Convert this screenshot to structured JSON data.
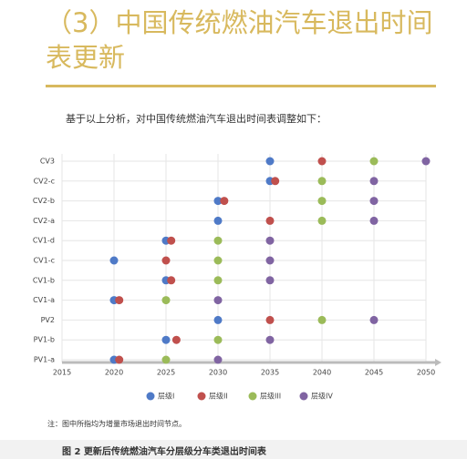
{
  "header": {
    "title": "（3）中国传统燃油汽车退出时间表更新"
  },
  "intro": "基于以上分析，对中国传统燃油汽车退出时间表调整如下：",
  "chart_data": {
    "type": "scatter",
    "categories": [
      "CV3",
      "CV2-c",
      "CV2-b",
      "CV2-a",
      "CV1-d",
      "CV1-c",
      "CV1-b",
      "CV1-a",
      "PV2",
      "PV1-b",
      "PV1-a"
    ],
    "series": [
      {
        "name": "层级I",
        "color": "#4f7ac7",
        "values": [
          2035,
          2035,
          2030,
          2030,
          2025,
          2020,
          2025,
          2020,
          2030,
          2025,
          2020
        ]
      },
      {
        "name": "层级II",
        "color": "#c0504d",
        "values": [
          2040,
          2035.5,
          2030.6,
          2035,
          2025.5,
          2025,
          2025.5,
          2020.5,
          2035,
          2026,
          2020.5
        ]
      },
      {
        "name": "层级III",
        "color": "#9bbb59",
        "values": [
          2045,
          2040,
          2040,
          2040,
          2030,
          2030,
          2030,
          2025,
          2040,
          2030,
          2025
        ]
      },
      {
        "name": "层级IV",
        "color": "#8064a2",
        "values": [
          2050,
          2045,
          2045,
          2045,
          2035,
          2035,
          2035,
          2030,
          2045,
          2035,
          2030
        ]
      }
    ],
    "xlim": [
      2015,
      2050
    ],
    "xticks": [
      2015,
      2020,
      2025,
      2030,
      2035,
      2040,
      2045,
      2050
    ],
    "grid": true,
    "legend": "bottom"
  },
  "note": "注：图中所指均为增量市场退出时间节点。",
  "caption": "图 2 更新后传统燃油汽车分层级分车类退出时间表"
}
